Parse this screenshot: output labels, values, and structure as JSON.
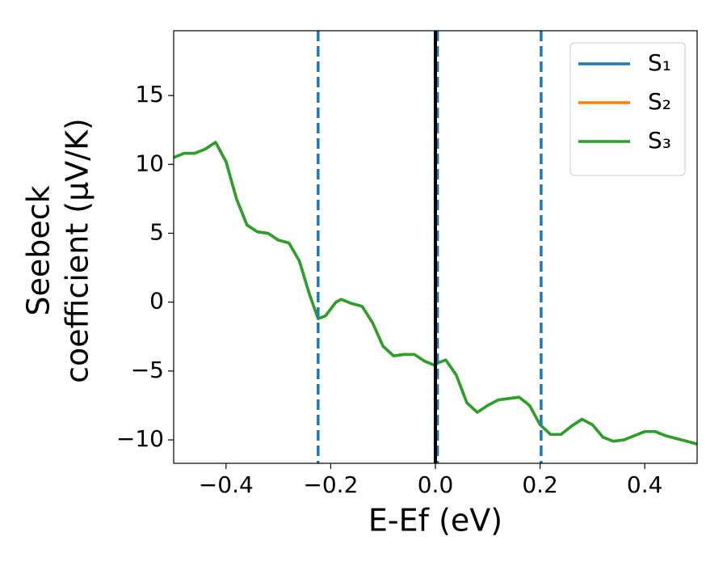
{
  "chart_data": {
    "type": "line",
    "x_label": "E-Ef (eV)",
    "y_label": [
      "Seebeck",
      "coefficient  (μV/K)"
    ],
    "x": [
      -0.5,
      -0.48,
      -0.46,
      -0.44,
      -0.42,
      -0.4,
      -0.38,
      -0.36,
      -0.34,
      -0.32,
      -0.3,
      -0.28,
      -0.26,
      -0.24,
      -0.224,
      -0.21,
      -0.19,
      -0.18,
      -0.16,
      -0.14,
      -0.12,
      -0.1,
      -0.08,
      -0.06,
      -0.04,
      -0.02,
      0.0,
      0.005,
      0.02,
      0.04,
      0.06,
      0.08,
      0.1,
      0.12,
      0.14,
      0.16,
      0.18,
      0.2,
      0.22,
      0.24,
      0.26,
      0.28,
      0.3,
      0.32,
      0.34,
      0.36,
      0.38,
      0.4,
      0.42,
      0.44,
      0.46,
      0.48,
      0.5
    ],
    "series": [
      {
        "name": "S₁",
        "color": "#1f77b4",
        "values": [
          10.5,
          10.8,
          10.8,
          11.1,
          11.6,
          10.2,
          7.5,
          5.6,
          5.1,
          5.0,
          4.5,
          4.3,
          3.0,
          0.5,
          -1.2,
          -1.0,
          0.0,
          0.2,
          -0.1,
          -0.3,
          -1.5,
          -3.2,
          -3.9,
          -3.8,
          -3.8,
          -4.3,
          -4.6,
          -4.4,
          -4.2,
          -5.3,
          -7.3,
          -8.0,
          -7.5,
          -7.1,
          -7.0,
          -6.9,
          -7.5,
          -8.9,
          -9.6,
          -9.6,
          -9.0,
          -8.5,
          -8.9,
          -9.8,
          -10.1,
          -10.0,
          -9.7,
          -9.4,
          -9.4,
          -9.7,
          -9.9,
          -10.1,
          -10.3
        ]
      },
      {
        "name": "S₂",
        "color": "#ff7f0e",
        "values": [
          10.5,
          10.8,
          10.8,
          11.1,
          11.6,
          10.2,
          7.5,
          5.6,
          5.1,
          5.0,
          4.5,
          4.3,
          3.0,
          0.5,
          -1.2,
          -1.0,
          0.0,
          0.2,
          -0.1,
          -0.3,
          -1.5,
          -3.2,
          -3.9,
          -3.8,
          -3.8,
          -4.3,
          -4.6,
          -4.4,
          -4.2,
          -5.3,
          -7.3,
          -8.0,
          -7.5,
          -7.1,
          -7.0,
          -6.9,
          -7.5,
          -8.9,
          -9.6,
          -9.6,
          -9.0,
          -8.5,
          -8.9,
          -9.8,
          -10.1,
          -10.0,
          -9.7,
          -9.4,
          -9.4,
          -9.7,
          -9.9,
          -10.1,
          -10.3
        ]
      },
      {
        "name": "S₃",
        "color": "#2ca02c",
        "values": [
          10.5,
          10.8,
          10.8,
          11.1,
          11.6,
          10.2,
          7.5,
          5.6,
          5.1,
          5.0,
          4.5,
          4.3,
          3.0,
          0.5,
          -1.2,
          -1.0,
          0.0,
          0.2,
          -0.1,
          -0.3,
          -1.5,
          -3.2,
          -3.9,
          -3.8,
          -3.8,
          -4.3,
          -4.6,
          -4.4,
          -4.2,
          -5.3,
          -7.3,
          -8.0,
          -7.5,
          -7.1,
          -7.0,
          -6.9,
          -7.5,
          -8.9,
          -9.6,
          -9.6,
          -9.0,
          -8.5,
          -8.9,
          -9.8,
          -10.1,
          -10.0,
          -9.7,
          -9.4,
          -9.4,
          -9.7,
          -9.9,
          -10.1,
          -10.3
        ]
      }
    ],
    "vlines": [
      {
        "x": -0.224,
        "color": "#1f77b4",
        "dashed": true
      },
      {
        "x": 0.004,
        "color": "#1f77b4",
        "dashed": true
      },
      {
        "x": 0.202,
        "color": "#1f77b4",
        "dashed": true
      },
      {
        "x": 0.0,
        "color": "#000000",
        "dashed": false
      }
    ],
    "xlim": [
      -0.5,
      0.5
    ],
    "ylim": [
      -11.7,
      19.7
    ],
    "xticks": [
      {
        "value": -0.4,
        "label": "−0.4"
      },
      {
        "value": -0.2,
        "label": "−0.2"
      },
      {
        "value": 0,
        "label": "0.0"
      },
      0.2,
      0.4
    ],
    "yticks": [
      {
        "value": -10,
        "label": "−10"
      },
      {
        "value": -5,
        "label": "−5"
      },
      0,
      5,
      10,
      15
    ],
    "legend": "upper right",
    "grid": false
  }
}
